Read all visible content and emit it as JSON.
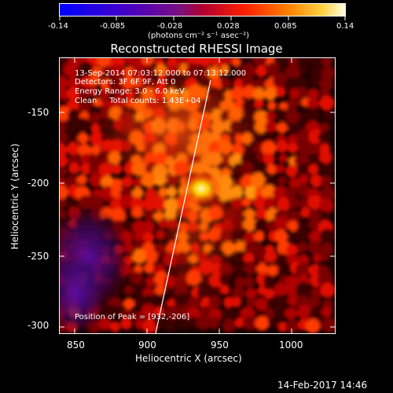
{
  "colorbar": {
    "tick_labels": [
      "-0.14",
      "-0.085",
      "-0.028",
      "0.028",
      "0.085",
      "0.14"
    ],
    "unit_label": "(photons cm⁻² s⁻¹ asec⁻²)"
  },
  "image": {
    "title": "Reconstructed RHESSI Image",
    "info_lines": [
      "13-Sep-2014 07:03:12.000 to 07:13:12.000",
      "Detectors: 3F 6F 9F, Att 0",
      "Energy Range: 3.0 - 6.0 keV",
      "Clean     Total counts: 1.43E+04"
    ],
    "peak_label": "Position of Peak = [932,-206]",
    "x_label": "Heliocentric X (arcsec)",
    "y_label": "Heliocentric Y (arcsec)",
    "x_ticks": [
      "850",
      "900",
      "950",
      "1000"
    ],
    "y_ticks": [
      "-150",
      "-200",
      "-250",
      "-300"
    ],
    "footer_date": "14-Feb-2017 14:46"
  },
  "colors": {
    "background": "#000000",
    "limb_line": "#ffffff",
    "colormap": [
      "#0000ff",
      "#5a00b0",
      "#a0108a",
      "#ff0000",
      "#ff8000",
      "#ffff80"
    ]
  }
}
